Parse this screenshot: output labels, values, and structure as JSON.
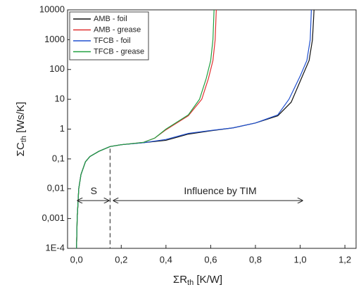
{
  "chart_data": {
    "type": "line",
    "xlabel": {
      "main": "ΣR",
      "sub": "th",
      "unit": " [K/W]"
    },
    "ylabel": {
      "main": "ΣC",
      "sub": "th",
      "unit": " [Ws/K]"
    },
    "xlim": [
      -0.04,
      1.25
    ],
    "ylim": [
      0.0001,
      10000
    ],
    "log_y": true,
    "grid": false,
    "legend": "upper left",
    "xticks": [
      {
        "value": 0,
        "label": "0,0"
      },
      {
        "value": 0.2,
        "label": "0,2"
      },
      {
        "value": 0.4,
        "label": "0,4"
      },
      {
        "value": 0.6,
        "label": "0,6"
      },
      {
        "value": 0.8,
        "label": "0,8"
      },
      {
        "value": 1,
        "label": "1,0"
      },
      {
        "value": 1.2,
        "label": "1,2"
      }
    ],
    "yticks": [
      {
        "value": 0.0001,
        "label": "1E-4"
      },
      {
        "value": 0.001,
        "label": "0,001"
      },
      {
        "value": 0.01,
        "label": "0,01"
      },
      {
        "value": 0.1,
        "label": "0,1"
      },
      1,
      10,
      100,
      1000,
      10000
    ],
    "annotations": [
      "S",
      "Influence by TIM"
    ],
    "series": [
      {
        "name": "AMB - foil",
        "color": "#111111",
        "x": [
          0,
          0.003,
          0.01,
          0.02,
          0.04,
          0.06,
          0.1,
          0.15,
          0.2,
          0.3,
          0.4,
          0.5,
          0.6,
          0.7,
          0.8,
          0.9,
          0.96,
          1.01,
          1.04,
          1.055,
          1.062
        ],
        "values": [
          0.0001,
          0.001,
          0.01,
          0.03,
          0.08,
          0.12,
          0.18,
          0.26,
          0.3,
          0.35,
          0.42,
          0.68,
          0.88,
          1.1,
          1.6,
          2.8,
          8,
          60,
          200,
          1000,
          10000
        ]
      },
      {
        "name": "AMB - grease",
        "color": "#e03030",
        "x": [
          0,
          0.003,
          0.01,
          0.02,
          0.04,
          0.06,
          0.1,
          0.15,
          0.2,
          0.3,
          0.35,
          0.4,
          0.5,
          0.56,
          0.59,
          0.61,
          0.62,
          0.625
        ],
        "values": [
          0.0001,
          0.001,
          0.01,
          0.03,
          0.08,
          0.12,
          0.18,
          0.26,
          0.3,
          0.36,
          0.5,
          0.95,
          2.8,
          10,
          50,
          200,
          1000,
          10000
        ]
      },
      {
        "name": "TFCB - foil",
        "color": "#2050d0",
        "x": [
          0,
          0.003,
          0.01,
          0.02,
          0.04,
          0.06,
          0.1,
          0.15,
          0.2,
          0.3,
          0.4,
          0.5,
          0.6,
          0.7,
          0.8,
          0.9,
          0.95,
          1.0,
          1.03,
          1.045,
          1.05
        ],
        "values": [
          0.0001,
          0.001,
          0.01,
          0.03,
          0.08,
          0.12,
          0.18,
          0.26,
          0.3,
          0.35,
          0.45,
          0.72,
          0.9,
          1.1,
          1.6,
          3,
          10,
          60,
          200,
          1000,
          10000
        ]
      },
      {
        "name": "TFCB - grease",
        "color": "#20a040",
        "x": [
          0,
          0.003,
          0.01,
          0.02,
          0.04,
          0.06,
          0.1,
          0.15,
          0.2,
          0.3,
          0.35,
          0.4,
          0.5,
          0.55,
          0.58,
          0.6,
          0.61,
          0.615
        ],
        "values": [
          0.0001,
          0.001,
          0.01,
          0.03,
          0.08,
          0.12,
          0.18,
          0.26,
          0.3,
          0.36,
          0.5,
          1,
          3,
          10,
          50,
          200,
          1000,
          10000
        ]
      }
    ]
  }
}
